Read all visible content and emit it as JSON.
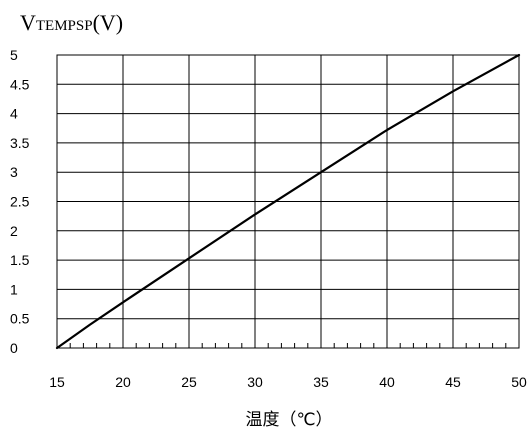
{
  "chart_data": {
    "type": "line",
    "ylabel": {
      "prefix": "V",
      "subscript": "TEMPSP",
      "suffix": "(V)"
    },
    "xlabel": "温度（℃）",
    "xlim": [
      15,
      50
    ],
    "ylim": [
      0,
      5
    ],
    "x_ticks": [
      15,
      20,
      25,
      30,
      35,
      40,
      45,
      50
    ],
    "y_ticks": [
      0,
      0.5,
      1,
      1.5,
      2,
      2.5,
      3,
      3.5,
      4,
      4.5,
      5
    ],
    "x_tick_labels": [
      "15",
      "20",
      "25",
      "30",
      "35",
      "40",
      "45",
      "50"
    ],
    "y_tick_labels": [
      "0",
      "0.5",
      "1",
      "1.5",
      "2",
      "2.5",
      "3",
      "3.5",
      "4",
      "4.5",
      "5"
    ],
    "x_minor_step": 1,
    "grid": true,
    "series": [
      {
        "x": [
          15,
          17.5,
          20,
          25,
          30,
          35,
          40,
          45,
          50
        ],
        "y": [
          0,
          0.4,
          0.78,
          1.53,
          2.28,
          3.0,
          3.72,
          4.38,
          5.0
        ]
      }
    ],
    "line_color": "#000000"
  }
}
